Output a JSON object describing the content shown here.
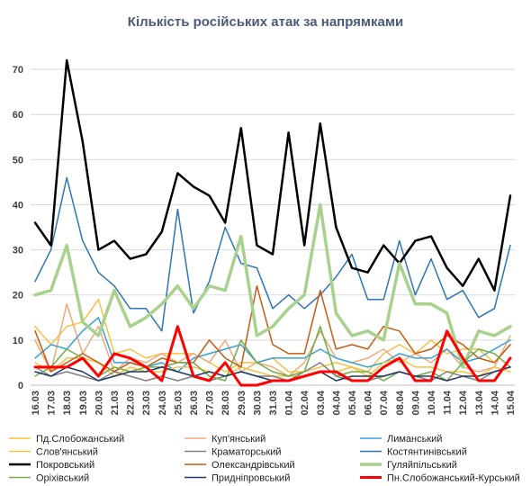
{
  "chart_data": {
    "type": "line",
    "title": "Кількість російських атак за напрямками",
    "xlabel": "",
    "ylabel": "",
    "ylim": [
      0,
      75
    ],
    "yticks": [
      0,
      10,
      20,
      30,
      40,
      50,
      60,
      70
    ],
    "grid": "horizontal",
    "legend_position": "bottom",
    "categories": [
      "16.03",
      "17.03",
      "18.03",
      "19.03",
      "20.03",
      "21.03",
      "22.03",
      "23.03",
      "24.03",
      "25.03",
      "26.03",
      "27.03",
      "28.03",
      "29.03",
      "30.03",
      "31.03",
      "01.04",
      "02.04",
      "03.04",
      "04.04",
      "05.04",
      "06.04",
      "07.04",
      "08.04",
      "09.04",
      "10.04",
      "11.04",
      "12.04",
      "13.04",
      "14.04",
      "15.04"
    ],
    "series": [
      {
        "name": "Пд.Слобожанський",
        "color": "#f5c242",
        "width": 1.5,
        "values": [
          13,
          9,
          13,
          14,
          19,
          7,
          8,
          6,
          7,
          7,
          7,
          5,
          3,
          5,
          5,
          6,
          3,
          3,
          4,
          5,
          4,
          3,
          7,
          9,
          7,
          10,
          7,
          8,
          8,
          5,
          9
        ]
      },
      {
        "name": "Куп'янський",
        "color": "#f0a878",
        "width": 1.5,
        "values": [
          10,
          3,
          18,
          7,
          13,
          3,
          6,
          5,
          7,
          5,
          7,
          5,
          10,
          3,
          5,
          4,
          2,
          5,
          12,
          6,
          5,
          6,
          8,
          5,
          7,
          5,
          8,
          4,
          3,
          4,
          11
        ]
      },
      {
        "name": "Лиманський",
        "color": "#3aa0d8",
        "width": 1.5,
        "values": [
          6,
          9,
          8,
          12,
          15,
          5,
          5,
          4,
          5,
          3,
          6,
          7,
          8,
          9,
          5,
          6,
          6,
          6,
          8,
          6,
          5,
          4,
          5,
          7,
          6,
          6,
          8,
          5,
          6,
          8,
          10
        ]
      },
      {
        "name": "Слов'янський",
        "color": "#f5c242",
        "width": 1.5,
        "values": [
          5,
          3,
          6,
          6,
          5,
          2,
          4,
          3,
          3,
          4,
          4,
          3,
          2,
          4,
          3,
          2,
          2,
          2,
          3,
          3,
          4,
          2,
          5,
          6,
          4,
          4,
          3,
          3,
          2,
          4,
          3
        ]
      },
      {
        "name": "Краматорський",
        "color": "#808080",
        "width": 1.5,
        "values": [
          4,
          2,
          3,
          2,
          1,
          3,
          2,
          1,
          2,
          1,
          2,
          1,
          2,
          3,
          2,
          2,
          1,
          3,
          5,
          2,
          1,
          1,
          2,
          3,
          2,
          1,
          3,
          2,
          1,
          3,
          4
        ]
      },
      {
        "name": "Костянтинівський",
        "color": "#2e75b6",
        "width": 1.5,
        "values": [
          23,
          30,
          46,
          32,
          25,
          22,
          17,
          17,
          12,
          39,
          16,
          23,
          35,
          27,
          26,
          17,
          20,
          17,
          20,
          24,
          29,
          19,
          19,
          32,
          20,
          28,
          19,
          21,
          15,
          17,
          31
        ]
      },
      {
        "name": "Покровський",
        "color": "#000000",
        "width": 2.5,
        "values": [
          36,
          31,
          72,
          54,
          30,
          32,
          28,
          29,
          34,
          47,
          44,
          42,
          36,
          57,
          31,
          29,
          56,
          31,
          58,
          35,
          26,
          25,
          31,
          27,
          32,
          33,
          26,
          22,
          28,
          21,
          42
        ]
      },
      {
        "name": "Олександрівський",
        "color": "#c55a11",
        "width": 1.5,
        "values": [
          12,
          3,
          5,
          7,
          5,
          3,
          5,
          4,
          6,
          5,
          5,
          10,
          6,
          4,
          22,
          9,
          7,
          7,
          21,
          8,
          9,
          8,
          13,
          12,
          7,
          8,
          11,
          9,
          6,
          5,
          9
        ]
      },
      {
        "name": "Гуляйпільський",
        "color": "#a9d18e",
        "width": 3.5,
        "values": [
          20,
          21,
          31,
          14,
          11,
          21,
          13,
          15,
          18,
          22,
          17,
          22,
          21,
          33,
          11,
          13,
          17,
          20,
          40,
          16,
          11,
          12,
          10,
          27,
          18,
          18,
          16,
          4,
          12,
          11,
          13
        ]
      },
      {
        "name": "Оріхівський",
        "color": "#70ad47",
        "width": 1.5,
        "values": [
          2,
          4,
          8,
          6,
          2,
          4,
          3,
          4,
          4,
          5,
          5,
          2,
          1,
          10,
          5,
          3,
          2,
          3,
          13,
          2,
          3,
          3,
          1,
          3,
          2,
          3,
          1,
          5,
          8,
          7,
          4
        ]
      },
      {
        "name": "Придніпровський",
        "color": "#203864",
        "width": 1.5,
        "values": [
          3,
          2,
          4,
          3,
          1,
          2,
          3,
          3,
          4,
          3,
          2,
          3,
          2,
          3,
          2,
          1,
          1,
          2,
          3,
          1,
          2,
          2,
          2,
          3,
          2,
          2,
          1,
          2,
          2,
          3,
          4
        ]
      },
      {
        "name": "Пн.Слобожанський-Курський",
        "color": "#ff0000",
        "width": 3,
        "values": [
          4,
          4,
          4,
          6,
          2,
          7,
          6,
          4,
          1,
          13,
          2,
          1,
          5,
          0,
          0,
          1,
          1,
          2,
          3,
          3,
          1,
          1,
          4,
          6,
          1,
          1,
          12,
          6,
          1,
          1,
          6
        ]
      }
    ]
  }
}
